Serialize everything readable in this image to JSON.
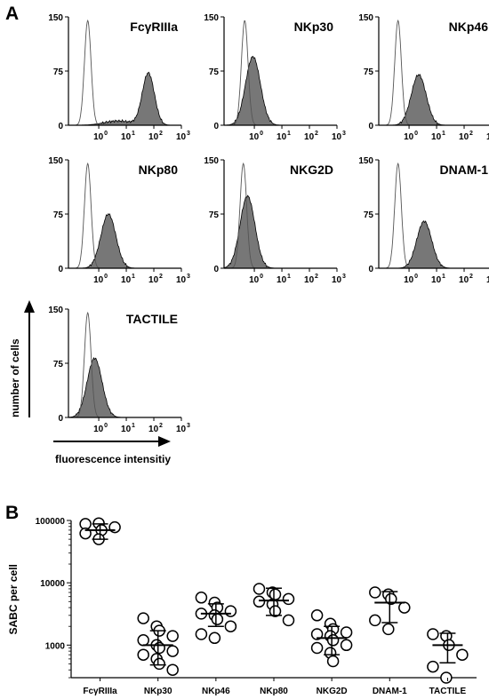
{
  "panel_a_letter": "A",
  "panel_b_letter": "B",
  "panel_a": {
    "y_axis_arrow_label": "number of cells",
    "x_axis_arrow_label": "fluorescence intensitiy",
    "y_ticks": [
      "0",
      "75",
      "150"
    ],
    "x_ticks": [
      "10",
      "10",
      "10",
      "10"
    ],
    "x_tick_exponents": [
      "0",
      "1",
      "2",
      "3"
    ]
  },
  "chart_data": [
    {
      "type": "area",
      "title": "FcγRIIIa",
      "scale": "log-x",
      "ylim": [
        0,
        150
      ],
      "isotype_control_peak_log10": -0.4,
      "stained_peak_log10": 1.8,
      "stained_peak_count": 72
    },
    {
      "type": "area",
      "title": "NKp30",
      "scale": "log-x",
      "ylim": [
        0,
        150
      ],
      "isotype_control_peak_log10": -0.35,
      "stained_peak_log10": -0.05,
      "stained_peak_count": 95
    },
    {
      "type": "area",
      "title": "NKp46",
      "scale": "log-x",
      "ylim": [
        0,
        150
      ],
      "isotype_control_peak_log10": -0.4,
      "stained_peak_log10": 0.35,
      "stained_peak_count": 70
    },
    {
      "type": "area",
      "title": "NKp80",
      "scale": "log-x",
      "ylim": [
        0,
        150
      ],
      "isotype_control_peak_log10": -0.4,
      "stained_peak_log10": 0.35,
      "stained_peak_count": 75
    },
    {
      "type": "area",
      "title": "NKG2D",
      "scale": "log-x",
      "ylim": [
        0,
        150
      ],
      "isotype_control_peak_log10": -0.4,
      "stained_peak_log10": -0.25,
      "stained_peak_count": 100
    },
    {
      "type": "area",
      "title": "DNAM-1",
      "scale": "log-x",
      "ylim": [
        0,
        150
      ],
      "isotype_control_peak_log10": -0.4,
      "stained_peak_log10": 0.55,
      "stained_peak_count": 65
    },
    {
      "type": "area",
      "title": "TACTILE",
      "scale": "log-x",
      "ylim": [
        0,
        150
      ],
      "isotype_control_peak_log10": -0.4,
      "stained_peak_log10": -0.15,
      "stained_peak_count": 82
    },
    {
      "type": "scatter",
      "ylabel": "SABC per cell",
      "scale": "log-y",
      "ylim": [
        300,
        100000
      ],
      "y_ticks": [
        "1000",
        "10000",
        "100000"
      ],
      "categories": [
        "FcγRIIIa",
        "NKp30",
        "NKp46",
        "NKp80",
        "NKG2D",
        "DNAM-1",
        "TACTILE"
      ],
      "series": [
        {
          "points": [
            88000,
            90000,
            70000,
            78000,
            62000,
            50000
          ],
          "mean": 70000,
          "sd_low": 50000,
          "sd_high": 88000
        },
        {
          "points": [
            2700,
            2000,
            1700,
            1400,
            1200,
            1000,
            900,
            800,
            700,
            600,
            500,
            400
          ],
          "mean": 1000,
          "sd_low": 480,
          "sd_high": 1700
        },
        {
          "points": [
            5800,
            4800,
            4000,
            3500,
            3200,
            3000,
            2600,
            2000,
            1500,
            1300
          ],
          "mean": 3200,
          "sd_low": 2000,
          "sd_high": 4600
        },
        {
          "points": [
            8000,
            7000,
            6500,
            5500,
            5000,
            4500,
            3500,
            2500
          ],
          "mean": 5200,
          "sd_low": 3000,
          "sd_high": 8200
        },
        {
          "points": [
            3000,
            2200,
            1800,
            1600,
            1500,
            1400,
            1200,
            1000,
            900,
            750,
            550
          ],
          "mean": 1300,
          "sd_low": 700,
          "sd_high": 2000
        },
        {
          "points": [
            7000,
            6500,
            5500,
            4000,
            2500,
            1800
          ],
          "mean": 4800,
          "sd_low": 2300,
          "sd_high": 7200
        },
        {
          "points": [
            1500,
            1400,
            1000,
            700,
            450,
            300
          ],
          "mean": 1000,
          "sd_low": 520,
          "sd_high": 1550
        }
      ]
    }
  ]
}
